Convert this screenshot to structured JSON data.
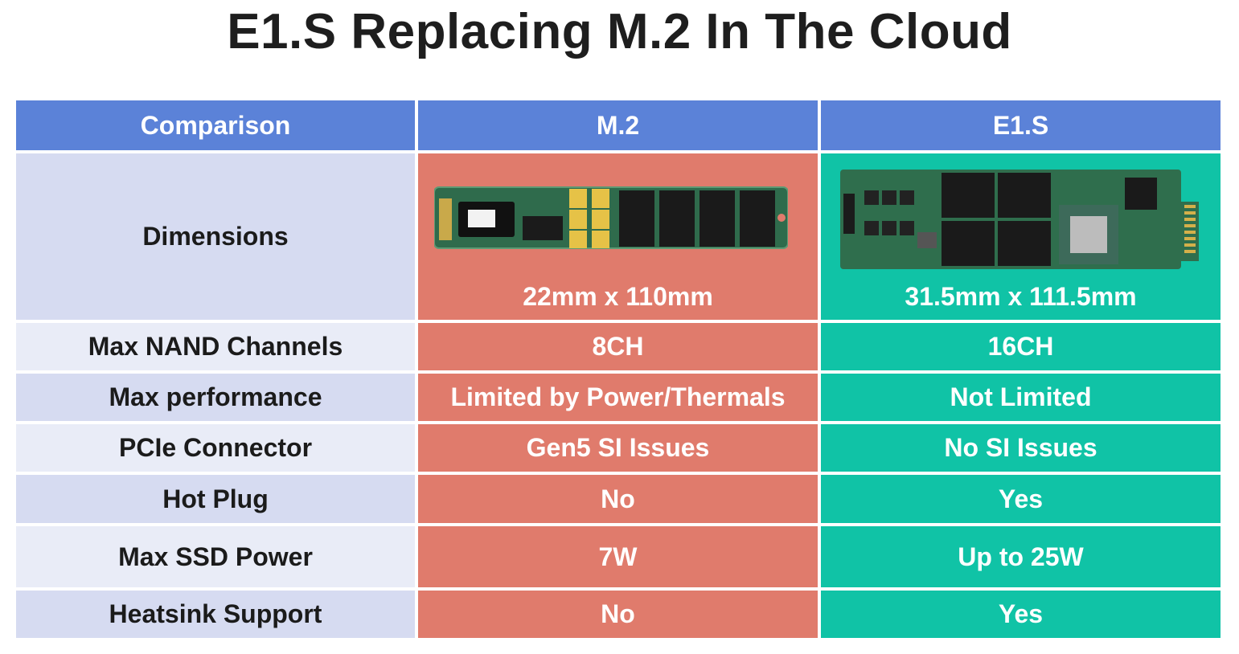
{
  "title": "E1.S Replacing M.2 In The Cloud",
  "headers": [
    "Comparison",
    "M.2",
    "E1.S"
  ],
  "dimensions": {
    "label": "Dimensions",
    "m2": "22mm x 110mm",
    "e1s": "31.5mm x 111.5mm",
    "m2_image_icon": "m2-ssd-board-icon",
    "e1s_image_icon": "e1s-ssd-board-icon"
  },
  "rows": [
    {
      "label": "Max NAND Channels",
      "m2": "8CH",
      "e1s": "16CH"
    },
    {
      "label": "Max performance",
      "m2": "Limited by Power/Thermals",
      "e1s": "Not Limited"
    },
    {
      "label": "PCIe Connector",
      "m2": "Gen5 SI Issues",
      "e1s": "No SI Issues"
    },
    {
      "label": "Hot Plug",
      "m2": "No",
      "e1s": "Yes"
    },
    {
      "label": "Max SSD Power",
      "m2": "7W",
      "e1s": "Up to 25W"
    },
    {
      "label": "Heatsink Support",
      "m2": "No",
      "e1s": "Yes"
    }
  ],
  "colors": {
    "header": "#5b82d8",
    "m2": "#e07b6c",
    "e1s": "#10c3a6",
    "label_dark": "#d6dbf1",
    "label_light": "#e9ecf7"
  }
}
